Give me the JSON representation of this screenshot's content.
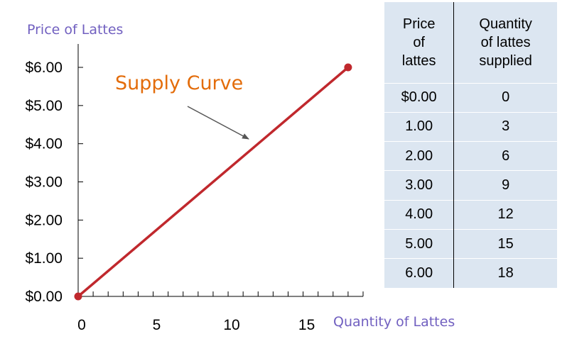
{
  "chart_data": {
    "type": "line",
    "xlabel": "Quantity of Lattes",
    "ylabel": "Price of Lattes",
    "xlim": [
      0,
      19
    ],
    "ylim": [
      0,
      6
    ],
    "x_ticks": [
      0,
      5,
      10,
      15
    ],
    "x_tick_labels": [
      "0",
      "5",
      "10",
      "15"
    ],
    "y_ticks": [
      0,
      1,
      2,
      3,
      4,
      5,
      6
    ],
    "y_tick_labels": [
      "$0.00",
      "$1.00",
      "$2.00",
      "$3.00",
      "$4.00",
      "$5.00",
      "$6.00"
    ],
    "series": [
      {
        "name": "Supply Curve",
        "x": [
          0,
          18
        ],
        "y": [
          0,
          6
        ],
        "color": "#c0282d"
      }
    ],
    "annotation": {
      "text": "Supply Curve",
      "color": "#e36c0a"
    },
    "axis_title_color": "#7160c0"
  },
  "table": {
    "headers": [
      [
        "Price",
        "of",
        "lattes"
      ],
      [
        "Quantity",
        "of lattes",
        "supplied"
      ]
    ],
    "rows": [
      [
        "$0.00",
        "0"
      ],
      [
        "1.00",
        "3"
      ],
      [
        "2.00",
        "6"
      ],
      [
        "3.00",
        "9"
      ],
      [
        "4.00",
        "12"
      ],
      [
        "5.00",
        "15"
      ],
      [
        "6.00",
        "18"
      ]
    ]
  }
}
